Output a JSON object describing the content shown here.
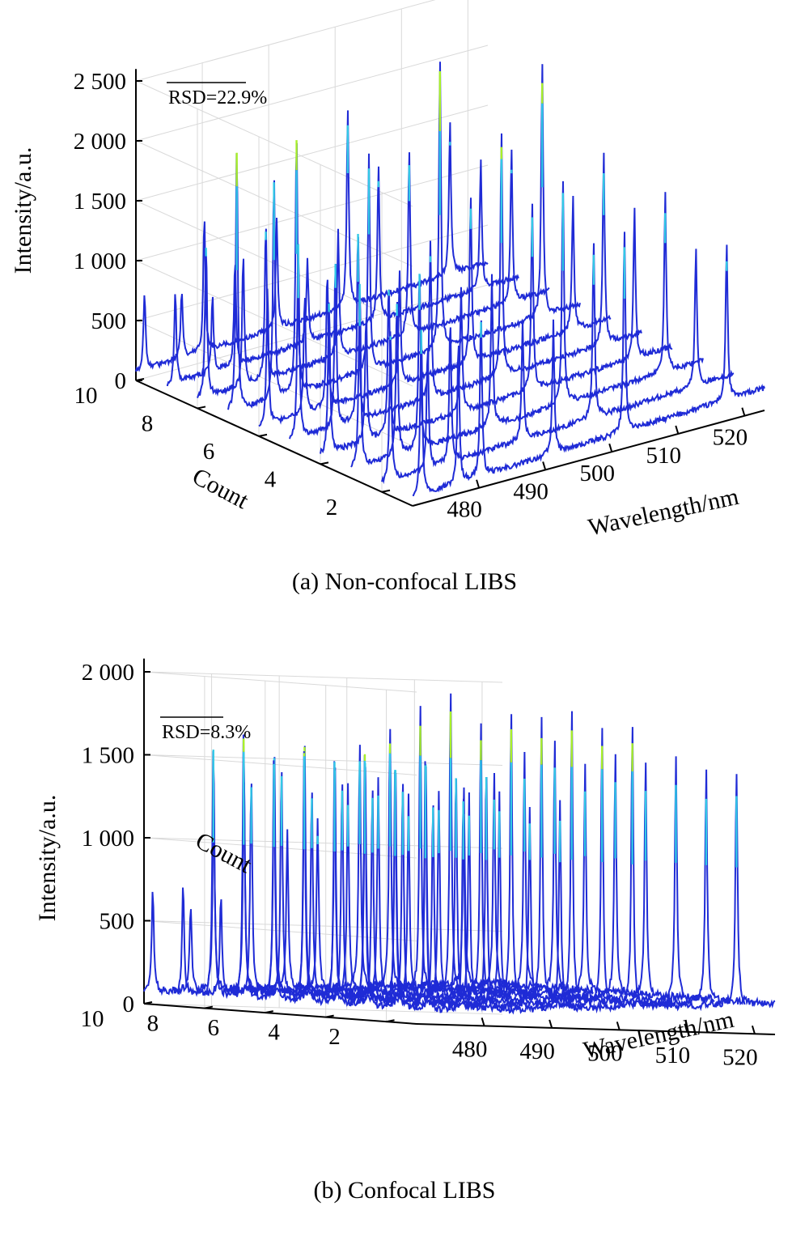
{
  "colors": {
    "base_line": "#1f2bd6",
    "mid": "#33c9e6",
    "high": "#a9f02a",
    "grid": "#d9d9d9",
    "axis": "#000000"
  },
  "chart_data": [
    {
      "type": "line",
      "view": "3d-waterfall",
      "caption": "(a) Non-confocal LIBS",
      "annotation": "RSD=22.9%",
      "xlabel": "Wavelength/nm",
      "ylabel": "Count",
      "zlabel": "Intensity/a.u.",
      "xticks": [
        "480",
        "490",
        "500",
        "510",
        "520"
      ],
      "yticks": [
        "2",
        "4",
        "6",
        "8",
        "10"
      ],
      "zticks": [
        "0",
        "500",
        "1 000",
        "1 500",
        "2 000",
        "2 500"
      ],
      "xlim": [
        470,
        523
      ],
      "ylim": [
        1,
        10
      ],
      "zlim": [
        0,
        2500
      ],
      "grid": true,
      "peak_wavelengths": [
        471.3,
        476.9,
        480.3,
        491.2,
        501.9,
        517.3
      ],
      "series": [
        {
          "values": [
            1450,
            1200,
            1380,
            1100,
            1680,
            1330
          ]
        },
        {
          "values": [
            1280,
            1050,
            1200,
            1000,
            1500,
            1180
          ]
        },
        {
          "values": [
            1600,
            1350,
            1550,
            1250,
            1900,
            1500
          ]
        },
        {
          "values": [
            1320,
            1100,
            1300,
            1050,
            1580,
            1250
          ]
        },
        {
          "values": [
            1700,
            1450,
            1650,
            1300,
            2050,
            1600
          ]
        },
        {
          "values": [
            1180,
            990,
            1150,
            960,
            1420,
            1120
          ]
        },
        {
          "values": [
            2230,
            1900,
            2200,
            1800,
            2450,
            2120
          ]
        },
        {
          "values": [
            1320,
            1100,
            1320,
            1080,
            1550,
            1280
          ]
        },
        {
          "values": [
            790,
            650,
            880,
            700,
            1300,
            1080
          ]
        },
        {
          "values": [
            650,
            560,
            1150,
            900,
            1650,
            1280
          ]
        }
      ]
    },
    {
      "type": "line",
      "view": "3d-waterfall",
      "caption": "(b) Confocal LIBS",
      "annotation": "RSD=8.3%",
      "xlabel": "Wavelength/nm",
      "ylabel": "Count",
      "zlabel": "Intensity/a.u.",
      "xticks": [
        "480",
        "490",
        "500",
        "510",
        "520"
      ],
      "yticks": [
        "2",
        "4",
        "6",
        "8",
        "10"
      ],
      "zticks": [
        "0",
        "500",
        "1 000",
        "1 500",
        "2 000"
      ],
      "xlim": [
        470,
        523
      ],
      "ylim": [
        1,
        10
      ],
      "zlim": [
        0,
        2000
      ],
      "grid": true,
      "peak_wavelengths": [
        471.3,
        476.9,
        480.3,
        491.2,
        501.9,
        517.3
      ],
      "series": [
        {
          "values": [
            1560,
            1350,
            1500,
            1250,
            1730,
            1430
          ]
        },
        {
          "values": [
            1520,
            1300,
            1480,
            1220,
            1700,
            1400
          ]
        },
        {
          "values": [
            1600,
            1380,
            1550,
            1280,
            1780,
            1470
          ]
        },
        {
          "values": [
            1540,
            1330,
            1500,
            1240,
            1720,
            1420
          ]
        },
        {
          "values": [
            1580,
            1360,
            1530,
            1260,
            1760,
            1460
          ]
        },
        {
          "values": [
            1500,
            1300,
            1470,
            1210,
            1680,
            1390
          ]
        },
        {
          "values": [
            1640,
            1420,
            1600,
            1320,
            1840,
            1520
          ]
        },
        {
          "values": [
            1560,
            1340,
            1520,
            1250,
            1740,
            1440
          ]
        },
        {
          "values": [
            680,
            600,
            1350,
            1050,
            1620,
            1300
          ]
        },
        {
          "values": [
            630,
            530,
            1200,
            950,
            1500,
            1200
          ]
        }
      ]
    }
  ]
}
